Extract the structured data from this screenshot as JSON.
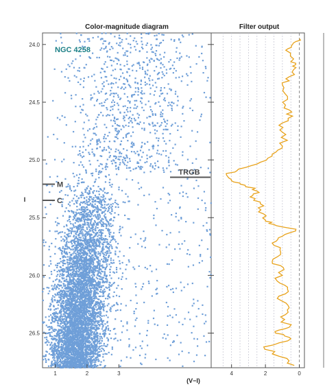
{
  "chart_data": [
    {
      "type": "scatter",
      "title": "Color-magnitude diagram",
      "xlabel": "(V−I)",
      "ylabel": "I",
      "xlim": [
        0.6,
        5.9
      ],
      "ylim": [
        26.8,
        23.9
      ],
      "y_inverted": true,
      "xticks": [
        1,
        2,
        3
      ],
      "xtick_labels": [
        "1",
        "2",
        "3"
      ],
      "yticks": [
        24.0,
        24.5,
        25.0,
        25.5,
        26.0,
        26.5
      ],
      "ytick_labels": [
        "24.0",
        "24.5",
        "25.0",
        "25.5",
        "26.0",
        "26.5"
      ],
      "point_color": "#6f9fd8",
      "label_text": "NGC 4258",
      "label_color": "#1a7f86",
      "annotations": [
        {
          "text": "TRGB",
          "y": 25.15
        },
        {
          "text": "M",
          "y": 25.21
        },
        {
          "text": "C",
          "y": 25.35
        }
      ],
      "distribution": {
        "dense_region": {
          "x_center_at_top": 2.2,
          "x_center_at_bottom": 1.6,
          "y_top": 25.1,
          "y_bottom": 26.8
        },
        "sparse_region": {
          "x_center": 3.4,
          "y_top": 23.9,
          "y_bottom": 25.1
        }
      }
    },
    {
      "type": "line",
      "title": "Filter output",
      "xlim": [
        5.2,
        -0.3
      ],
      "ylim": [
        26.8,
        23.9
      ],
      "xticks": [
        4,
        2,
        0
      ],
      "xtick_labels": [
        "4",
        "2",
        "0"
      ],
      "line_color": "#e8a21a",
      "points": [
        [
          0.0,
          23.95
        ],
        [
          0.4,
          24.0
        ],
        [
          0.8,
          24.05
        ],
        [
          0.5,
          24.15
        ],
        [
          0.2,
          24.2
        ],
        [
          0.6,
          24.28
        ],
        [
          1.0,
          24.35
        ],
        [
          0.7,
          24.45
        ],
        [
          0.9,
          24.55
        ],
        [
          0.4,
          24.62
        ],
        [
          1.2,
          24.7
        ],
        [
          0.8,
          24.78
        ],
        [
          1.0,
          24.88
        ],
        [
          1.6,
          24.95
        ],
        [
          2.3,
          25.02
        ],
        [
          3.6,
          25.08
        ],
        [
          4.3,
          25.13
        ],
        [
          4.0,
          25.18
        ],
        [
          3.2,
          25.22
        ],
        [
          2.5,
          25.27
        ],
        [
          2.9,
          25.32
        ],
        [
          2.3,
          25.38
        ],
        [
          2.4,
          25.45
        ],
        [
          2.0,
          25.52
        ],
        [
          1.5,
          25.56
        ],
        [
          0.2,
          25.6
        ],
        [
          1.0,
          25.66
        ],
        [
          1.6,
          25.72
        ],
        [
          1.1,
          25.8
        ],
        [
          1.6,
          25.88
        ],
        [
          0.9,
          25.95
        ],
        [
          1.3,
          26.05
        ],
        [
          0.7,
          26.12
        ],
        [
          1.3,
          26.2
        ],
        [
          0.6,
          26.28
        ],
        [
          1.1,
          26.36
        ],
        [
          0.6,
          26.45
        ],
        [
          1.4,
          26.5
        ],
        [
          0.5,
          26.55
        ],
        [
          2.1,
          26.62
        ],
        [
          1.2,
          26.7
        ],
        [
          0.3,
          26.78
        ]
      ]
    }
  ]
}
